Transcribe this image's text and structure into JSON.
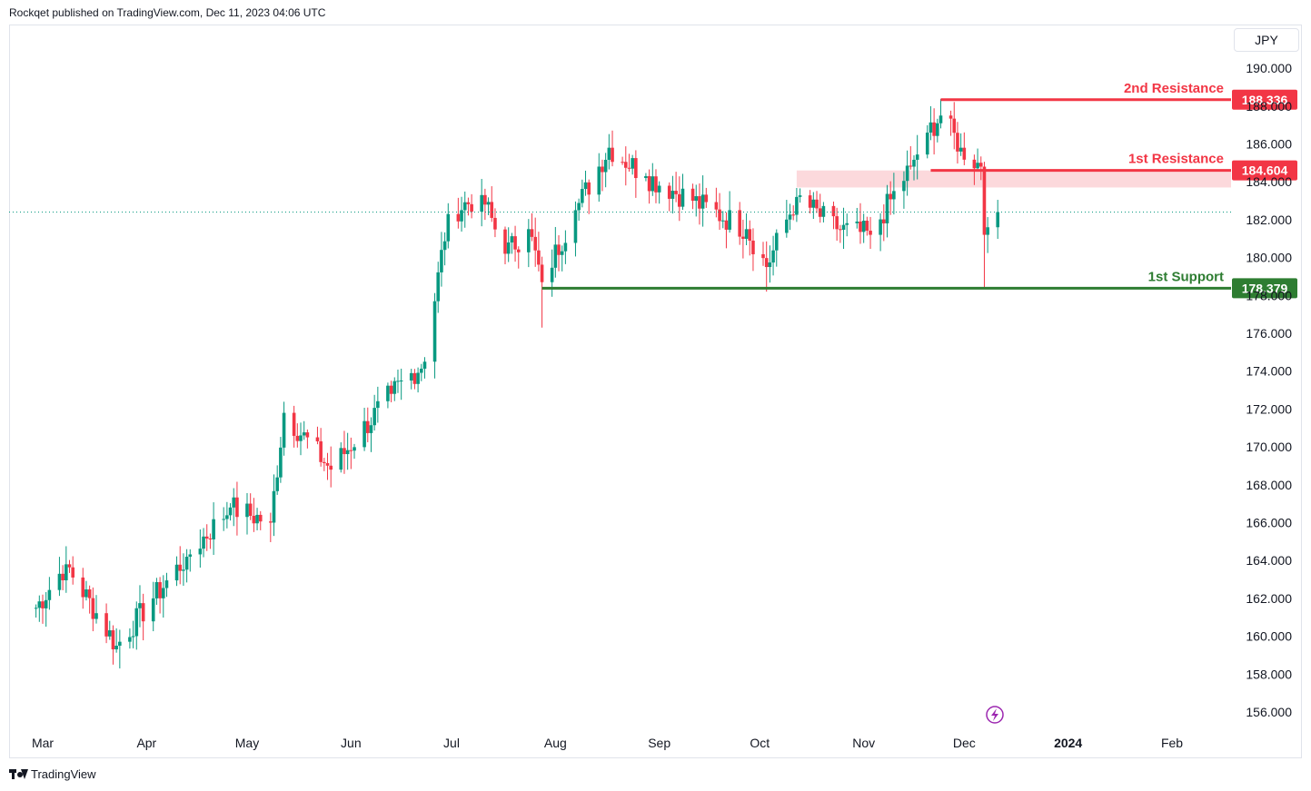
{
  "header": {
    "attribution": "Rockqet published on TradingView.com, Dec 11, 2023 04:06 UTC"
  },
  "footer": {
    "brand": "TradingView"
  },
  "currency_button": {
    "label": "JPY"
  },
  "colors": {
    "up": "#089981",
    "down": "#f23645",
    "resistance": "#f23645",
    "support": "#2e7d32",
    "zone": "#fcd5d8",
    "flash": "#9c27b0"
  },
  "chart_data": {
    "type": "candlestick",
    "title": "",
    "ylim": [
      154.8,
      191.5
    ],
    "y_ticks": [
      "156.000",
      "158.000",
      "160.000",
      "162.000",
      "164.000",
      "166.000",
      "168.000",
      "170.000",
      "172.000",
      "174.000",
      "176.000",
      "178.000",
      "180.000",
      "182.000",
      "184.000",
      "186.000",
      "188.000",
      "190.000"
    ],
    "x_ticks": [
      "Mar",
      "Apr",
      "May",
      "Jun",
      "Jul",
      "Aug",
      "Sep",
      "Oct",
      "Nov",
      "Dec",
      "2024",
      "Feb"
    ],
    "x_range": [
      "2023-02-27",
      "2024-02-27"
    ],
    "last_price": 182.4,
    "levels": [
      {
        "label": "2nd Resistance",
        "value": "188.336",
        "price": 188.336,
        "start": "2023-11-24",
        "type": "resistance"
      },
      {
        "label": "1st Resistance",
        "value": "184.604",
        "price": 184.604,
        "start": "2023-11-21",
        "type": "resistance"
      },
      {
        "label": "1st Support",
        "value": "178.379",
        "price": 178.379,
        "start": "2023-07-28",
        "type": "support"
      }
    ],
    "zone": {
      "start": "2023-10-12",
      "top": 184.6,
      "bottom": 183.7
    },
    "key_points": [
      {
        "date": "2023-02-27",
        "close": 161.5
      },
      {
        "date": "2023-03-08",
        "close": 163.8
      },
      {
        "date": "2023-03-23",
        "close": 159.5
      },
      {
        "date": "2023-04-03",
        "close": 162.0
      },
      {
        "date": "2023-04-13",
        "close": 164.2
      },
      {
        "date": "2023-04-26",
        "close": 166.8
      },
      {
        "date": "2023-05-08",
        "close": 166.0
      },
      {
        "date": "2023-05-12",
        "close": 171.8
      },
      {
        "date": "2023-05-26",
        "close": 168.8
      },
      {
        "date": "2023-06-13",
        "close": 172.8
      },
      {
        "date": "2023-06-23",
        "close": 174.5
      },
      {
        "date": "2023-06-30",
        "close": 182.3
      },
      {
        "date": "2023-07-10",
        "close": 183.3
      },
      {
        "date": "2023-07-17",
        "close": 180.2
      },
      {
        "date": "2023-07-24",
        "close": 181.5
      },
      {
        "date": "2023-07-28",
        "close": 178.7
      },
      {
        "date": "2023-08-07",
        "close": 182.5
      },
      {
        "date": "2023-08-17",
        "close": 185.8
      },
      {
        "date": "2023-08-28",
        "close": 184.3
      },
      {
        "date": "2023-09-11",
        "close": 183.0
      },
      {
        "date": "2023-09-27",
        "close": 181.5
      },
      {
        "date": "2023-10-03",
        "close": 179.5
      },
      {
        "date": "2023-10-12",
        "close": 183.2
      },
      {
        "date": "2023-10-24",
        "close": 181.5
      },
      {
        "date": "2023-11-03",
        "close": 181.2
      },
      {
        "date": "2023-11-15",
        "close": 184.8
      },
      {
        "date": "2023-11-20",
        "close": 186.6
      },
      {
        "date": "2023-11-24",
        "close": 187.5
      },
      {
        "date": "2023-11-30",
        "close": 185.8
      },
      {
        "date": "2023-12-06",
        "close": 184.8
      },
      {
        "date": "2023-12-07",
        "close": 181.2
      },
      {
        "date": "2023-12-08",
        "close": 181.6
      },
      {
        "date": "2023-12-11",
        "close": 182.4
      }
    ]
  }
}
